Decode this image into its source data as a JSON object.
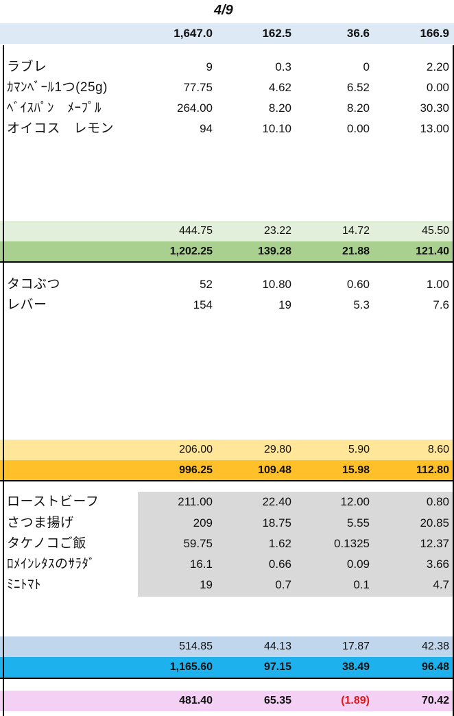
{
  "date": "4/9",
  "header_totals": [
    "1,647.0",
    "162.5",
    "36.6",
    "166.9"
  ],
  "section1": {
    "items": [
      {
        "name": "ラブレ",
        "v": [
          "9",
          "0.3",
          "0",
          "2.20"
        ]
      },
      {
        "name": "ｶﾏﾝﾍﾞｰﾙ1つ(25g)",
        "v": [
          "77.75",
          "4.62",
          "6.52",
          "0.00"
        ]
      },
      {
        "name": "ﾍﾞｲｽﾊﾟﾝ　ﾒｰﾌﾟﾙ",
        "v": [
          "264.00",
          "8.20",
          "8.20",
          "30.30"
        ]
      },
      {
        "name": "オイコス　レモン",
        "v": [
          "94",
          "10.10",
          "0.00",
          "13.00"
        ]
      }
    ],
    "subtotal": [
      "444.75",
      "23.22",
      "14.72",
      "45.50"
    ],
    "remaining": [
      "1,202.25",
      "139.28",
      "21.88",
      "121.40"
    ]
  },
  "section2": {
    "items": [
      {
        "name": "タコぶつ",
        "v": [
          "52",
          "10.80",
          "0.60",
          "1.00"
        ]
      },
      {
        "name": "レバー",
        "v": [
          "154",
          "19",
          "5.3",
          "7.6"
        ]
      }
    ],
    "subtotal": [
      "206.00",
      "29.80",
      "5.90",
      "8.60"
    ],
    "remaining": [
      "996.25",
      "109.48",
      "15.98",
      "112.80"
    ]
  },
  "section3": {
    "items": [
      {
        "name": "ローストビーフ",
        "v": [
          "211.00",
          "22.40",
          "12.00",
          "0.80"
        ]
      },
      {
        "name": "さつま揚げ",
        "v": [
          "209",
          "18.75",
          "5.55",
          "20.85"
        ]
      },
      {
        "name": "タケノコご飯",
        "v": [
          "59.75",
          "1.62",
          "0.1325",
          "12.37"
        ]
      },
      {
        "name": "ﾛﾒｲﾝﾚﾀｽのｻﾗﾀﾞ",
        "v": [
          "16.1",
          "0.66",
          "0.09",
          "3.66"
        ]
      },
      {
        "name": "ﾐﾆﾄﾏﾄ",
        "v": [
          "19",
          "0.7",
          "0.1",
          "4.7"
        ]
      }
    ],
    "subtotal": [
      "514.85",
      "44.13",
      "17.87",
      "42.38"
    ],
    "remaining": [
      "1,165.60",
      "97.15",
      "38.49",
      "96.48"
    ]
  },
  "final": [
    "481.40",
    "65.35",
    "(1.89)",
    "70.42"
  ],
  "colors": {
    "header_band": "#dde9f5",
    "s1_sub": "#e2efda",
    "s1_rem": "#a9d08e",
    "s2_sub": "#ffe699",
    "s2_rem": "#ffc02a",
    "s3_sub": "#c0d6ec",
    "s3_rem": "#1db1ed",
    "final": "#f4d0f4",
    "negative": "#e01818"
  }
}
